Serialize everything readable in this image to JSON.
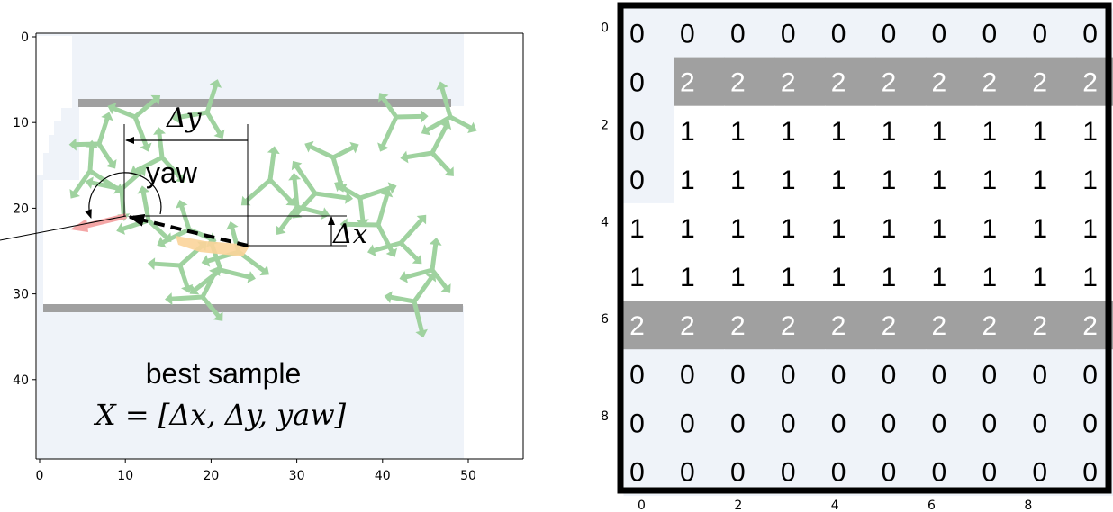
{
  "left_panel": {
    "x_ticks": [
      "0",
      "10",
      "20",
      "30",
      "40",
      "50"
    ],
    "y_ticks": [
      "0",
      "10",
      "20",
      "30",
      "40"
    ],
    "label_delta_y": "Δy",
    "label_delta_x": "Δx",
    "label_yaw": "yaw",
    "caption_line1": "best sample",
    "caption_line2": "X = [Δx, Δy, yaw]",
    "colors": {
      "free_space": "#eff3f9",
      "wall": "#a0a0a0",
      "sample_arrows": "#9fd29f",
      "best_arrow": "#f4a6a6",
      "highlight": "#fbd49a"
    }
  },
  "right_panel": {
    "x_ticks": [
      "0",
      "2",
      "4",
      "6",
      "8"
    ],
    "y_ticks": [
      "0",
      "2",
      "4",
      "6",
      "8"
    ],
    "grid": [
      [
        "0",
        "0",
        "0",
        "0",
        "0",
        "0",
        "0",
        "0",
        "0",
        "0"
      ],
      [
        "0",
        "2",
        "2",
        "2",
        "2",
        "2",
        "2",
        "2",
        "2",
        "2"
      ],
      [
        "0",
        "1",
        "1",
        "1",
        "1",
        "1",
        "1",
        "1",
        "1",
        "1"
      ],
      [
        "0",
        "1",
        "1",
        "1",
        "1",
        "1",
        "1",
        "1",
        "1",
        "1"
      ],
      [
        "1",
        "1",
        "1",
        "1",
        "1",
        "1",
        "1",
        "1",
        "1",
        "1"
      ],
      [
        "1",
        "1",
        "1",
        "1",
        "1",
        "1",
        "1",
        "1",
        "1",
        "1"
      ],
      [
        "2",
        "2",
        "2",
        "2",
        "2",
        "2",
        "2",
        "2",
        "2",
        "2"
      ],
      [
        "0",
        "0",
        "0",
        "0",
        "0",
        "0",
        "0",
        "0",
        "0",
        "0"
      ],
      [
        "0",
        "0",
        "0",
        "0",
        "0",
        "0",
        "0",
        "0",
        "0",
        "0"
      ],
      [
        "0",
        "0",
        "0",
        "0",
        "0",
        "0",
        "0",
        "0",
        "0",
        "0"
      ]
    ],
    "colors": {
      "zero_cell": "#eff3f9",
      "one_cell": "#ffffff",
      "two_cell": "#a0a0a0",
      "two_text": "#ffffff",
      "frame": "#000000"
    }
  }
}
